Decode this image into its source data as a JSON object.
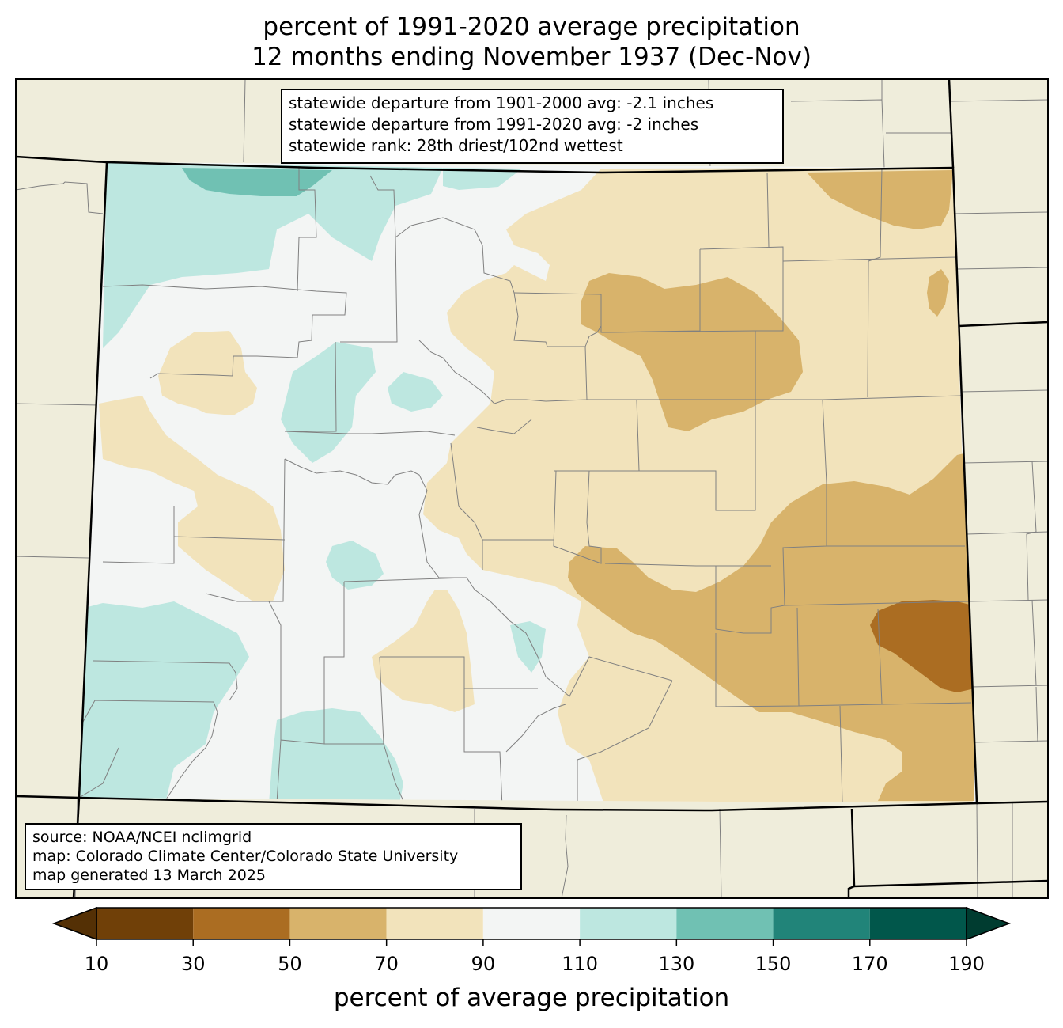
{
  "title": {
    "line1": "percent of 1991-2020 average precipitation",
    "line2": "12 months ending November 1937 (Dec-Nov)"
  },
  "stats_box": {
    "line1": "statewide departure from 1901-2000 avg: -2.1 inches",
    "line2": "statewide departure from 1991-2020 avg: -2 inches",
    "line3": "statewide rank: 28th driest/102nd wettest"
  },
  "source_box": {
    "line1": "source: NOAA/NCEI nclimgrid",
    "line2": "map: Colorado Climate Center/Colorado State University",
    "line3": "map generated 13 March 2025"
  },
  "colorbar": {
    "label": "percent of average precipitation",
    "ticks": [
      "10",
      "30",
      "50",
      "70",
      "90",
      "110",
      "130",
      "150",
      "170",
      "190"
    ],
    "under_color": "#543005",
    "over_color": "#003c30",
    "bins": [
      {
        "from": 10,
        "to": 30,
        "color": "#704008"
      },
      {
        "from": 30,
        "to": 50,
        "color": "#ab6d22"
      },
      {
        "from": 50,
        "to": 70,
        "color": "#d8b36b"
      },
      {
        "from": 70,
        "to": 90,
        "color": "#f2e3bb"
      },
      {
        "from": 90,
        "to": 110,
        "color": "#f3f5f4"
      },
      {
        "from": 110,
        "to": 130,
        "color": "#bde7e0"
      },
      {
        "from": 130,
        "to": 150,
        "color": "#70c1b3"
      },
      {
        "from": 150,
        "to": 170,
        "color": "#218479"
      },
      {
        "from": 170,
        "to": 190,
        "color": "#01574b"
      }
    ]
  },
  "colors": {
    "land_outside": "#efeddb",
    "county_lines": "#808080",
    "state_lines": "#000000"
  }
}
